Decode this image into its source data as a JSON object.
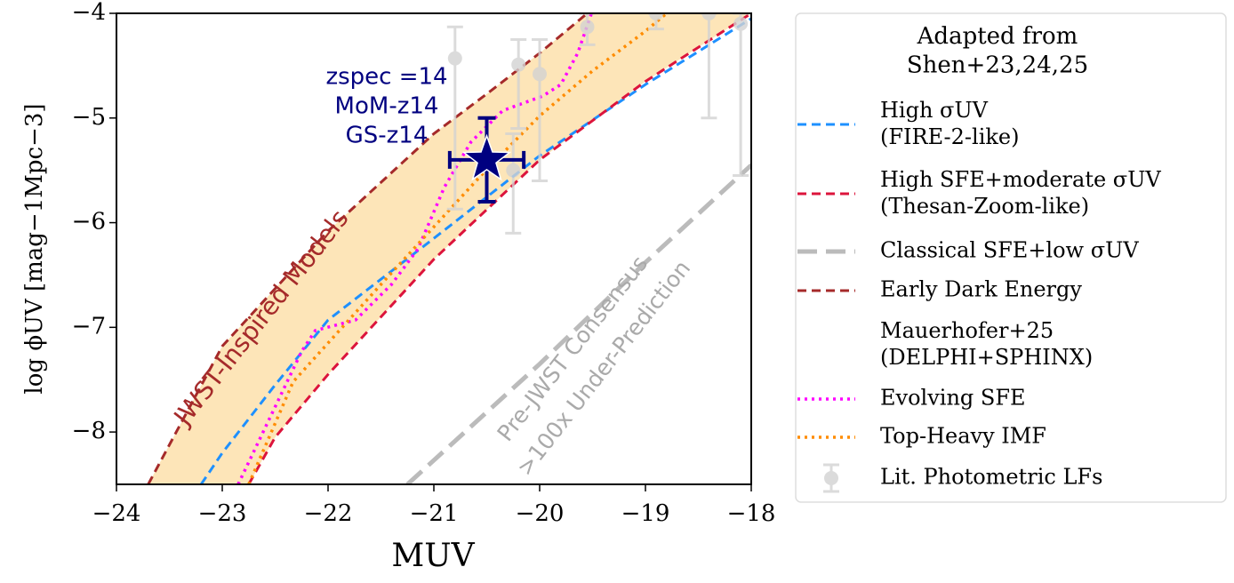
{
  "chart_data": {
    "type": "line",
    "xlabel": "MUV",
    "ylabel": "log ϕUV [mag−1Mpc−3]",
    "xlim": [
      -24,
      -18
    ],
    "ylim": [
      -8.5,
      -4
    ],
    "xticks": [
      {
        "value": -24,
        "label": "−24"
      },
      {
        "value": -23,
        "label": "−23"
      },
      {
        "value": -22,
        "label": "−22"
      },
      {
        "value": -21,
        "label": "−21"
      },
      {
        "value": -20,
        "label": "−20"
      },
      {
        "value": -19,
        "label": "−19"
      },
      {
        "value": -18,
        "label": "−18"
      }
    ],
    "yticks": [
      {
        "value": -4,
        "label": "−4"
      },
      {
        "value": -5,
        "label": "−5"
      },
      {
        "value": -6,
        "label": "−6"
      },
      {
        "value": -7,
        "label": "−7"
      },
      {
        "value": -8,
        "label": "−8"
      }
    ],
    "legend_title": "Adapted from\nShen+23,24,25",
    "legend": "right",
    "band": {
      "series": [
        3,
        1
      ],
      "color": "#fde5b8"
    },
    "series": [
      {
        "name": "High σUV\n(FIRE-2-like)",
        "color": "#1e90ff",
        "style": "dashed",
        "x": [
          -23.2,
          -23,
          -22.5,
          -22,
          -21,
          -20,
          -19,
          -18
        ],
        "values": [
          -8.5,
          -8.2,
          -7.55,
          -6.93,
          -6.15,
          -5.36,
          -4.68,
          -4.05
        ]
      },
      {
        "name": "High SFE+moderate σUV\n(Thesan-Zoom-like)",
        "color": "#dc143c",
        "style": "dashed",
        "x": [
          -22.75,
          -22.5,
          -22,
          -21,
          -20,
          -19,
          -18
        ],
        "values": [
          -8.5,
          -8.05,
          -7.45,
          -6.35,
          -5.4,
          -4.65,
          -4.0
        ]
      },
      {
        "name": "Classical SFE+low σUV",
        "color": "#bbbbbb",
        "style": "longdash",
        "x": [
          -21.25,
          -20,
          -19,
          -18
        ],
        "values": [
          -8.5,
          -7.35,
          -6.38,
          -5.45
        ]
      },
      {
        "name": "Early Dark Energy",
        "color": "#a52a2a",
        "style": "dashed",
        "x": [
          -23.7,
          -23,
          -22,
          -21,
          -20.5,
          -20,
          -19.55
        ],
        "values": [
          -8.5,
          -7.18,
          -6.08,
          -5.15,
          -4.77,
          -4.38,
          -4.0
        ]
      },
      {
        "name": "Mauerhofer+25\n(DELPHI+SPHINX)",
        "color": "#ffffff",
        "style": "none",
        "x": [],
        "values": []
      },
      {
        "name": "Evolving SFE",
        "color": "#ff00ff",
        "style": "dotted",
        "x": [
          -22.85,
          -22.25,
          -22.12,
          -21.74,
          -21.4,
          -21.15,
          -20.9,
          -20.65,
          -20.35,
          -19.97,
          -19.8,
          -19.64,
          -19.51
        ],
        "values": [
          -8.5,
          -7.23,
          -7.03,
          -6.93,
          -6.59,
          -6.25,
          -5.66,
          -5.23,
          -4.93,
          -4.79,
          -4.68,
          -4.38,
          -4.0
        ]
      },
      {
        "name": "Top-Heavy IMF",
        "color": "#ff8c00",
        "style": "dotted",
        "x": [
          -22.75,
          -22.33,
          -21.5,
          -21,
          -20.5,
          -20,
          -19.5,
          -19,
          -18.8
        ],
        "values": [
          -8.5,
          -7.52,
          -6.59,
          -6.04,
          -5.49,
          -4.98,
          -4.55,
          -4.17,
          -4.0
        ]
      },
      {
        "name": "Lit. Photometric LFs",
        "color": "#d3d3d3",
        "style": "errorbar",
        "x": [
          -20.8,
          -20.25,
          -20.2,
          -20.0,
          -19.55,
          -18.9,
          -18.4,
          -18.1
        ],
        "values": [
          -4.43,
          -5.5,
          -4.49,
          -4.58,
          -4.13,
          -4.0,
          -4.0,
          -4.1
        ],
        "ylow": [
          -5.87,
          -6.1,
          -5.1,
          -5.6,
          -4.3,
          -4.15,
          -5.0,
          -5.55
        ],
        "yhigh": [
          -4.13,
          -5.15,
          -4.25,
          -4.25,
          -4.0,
          -4.0,
          -4.0,
          -4.0
        ]
      }
    ],
    "star": {
      "x": -20.5,
      "y": -5.4,
      "xerr": 0.35,
      "yerr": 0.4,
      "color": "#000080",
      "label": [
        "zspec =14",
        "MoM-z14",
        "GS-z14"
      ]
    },
    "annotations": [
      {
        "text": "JWST-Inspired Models",
        "color": "#a52a2a"
      },
      {
        "text": "Pre-JWST Consensus",
        "color": "#aaaaaa"
      },
      {
        "text": ">100x Under-Prediction",
        "color": "#aaaaaa"
      }
    ]
  }
}
